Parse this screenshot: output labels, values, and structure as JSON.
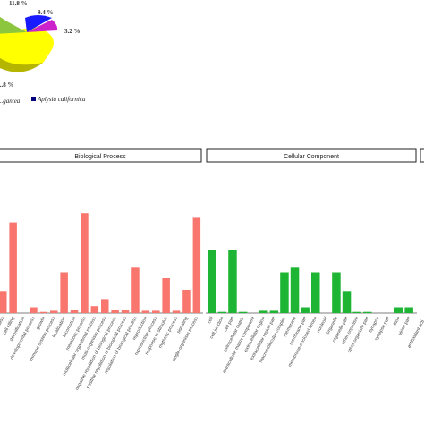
{
  "pie": {
    "type": "pie",
    "slices": [
      {
        "label": "11.8 %",
        "color": "#8cc63f",
        "value": 11.8
      },
      {
        "label": "9.4 %",
        "color": "#1a1aff",
        "value": 9.4
      },
      {
        "label": "3.2 %",
        "color": "#cc22cc",
        "value": 3.2
      },
      {
        "label": "...8 %",
        "color": "#ffff00",
        "value": 75.6
      }
    ],
    "legend": [
      {
        "label": "...gantea",
        "color": "#ffff00"
      },
      {
        "label": "Aplysia californica",
        "color": "#000080"
      }
    ]
  },
  "chart_data": {
    "type": "bar",
    "panels": [
      {
        "title": "Biological Process",
        "color": "#f8766d",
        "categories": [
          "...process",
          "cell killing",
          "detoxification",
          "developmental process",
          "growth",
          "immune system process",
          "localization",
          "locomotion",
          "metabolic process",
          "multicellular organismal process",
          "multi-organism process",
          "negative regulation of biological process",
          "positive regulation of biological process",
          "regulation of biological process",
          "reproduction",
          "reproductive process",
          "response to stimulus",
          "rhythmic process",
          "signaling",
          "single-organism process"
        ],
        "values": [
          19,
          78,
          0,
          5,
          1,
          2,
          35,
          3,
          86,
          6,
          12,
          3,
          3,
          39,
          2,
          2,
          30,
          2,
          20,
          82
        ]
      },
      {
        "title": "Cellular Component",
        "color": "#1db533",
        "categories": [
          "cell",
          "cell junction",
          "cell part",
          "extracellular matrix",
          "extracellular matrix component",
          "extracellular region",
          "extracellular region part",
          "macromolecular complex",
          "membrane",
          "membrane part",
          "membrane-enclosed lumen",
          "nucleoid",
          "organelle",
          "organelle part",
          "other organism",
          "other organism part",
          "synapse",
          "synapse part",
          "virion",
          "virion part"
        ],
        "values": [
          54,
          1,
          54,
          1,
          0,
          2,
          2,
          35,
          39,
          5,
          35,
          0,
          35,
          19,
          1,
          1,
          0,
          0,
          5,
          5
        ]
      },
      {
        "title": "",
        "color": "#619cff",
        "categories": [
          "antioxidant acti..."
        ],
        "values": [
          0
        ]
      }
    ],
    "ylim": [
      0,
      100
    ]
  }
}
